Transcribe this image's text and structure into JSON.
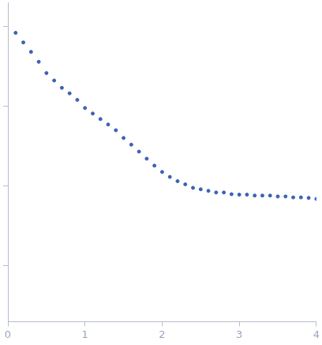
{
  "chart_data": {
    "type": "scatter",
    "x": [
      0.1,
      0.2,
      0.3,
      0.4,
      0.5,
      0.6,
      0.7,
      0.8,
      0.9,
      1.0,
      1.1,
      1.2,
      1.3,
      1.4,
      1.5,
      1.6,
      1.7,
      1.8,
      1.9,
      2.0,
      2.1,
      2.2,
      2.3,
      2.4,
      2.5,
      2.6,
      2.7,
      2.8,
      2.9,
      3.0,
      3.1,
      3.2,
      3.3,
      3.4,
      3.5,
      3.6,
      3.7,
      3.8,
      3.9,
      4.0
    ],
    "values": [
      0.83,
      0.63,
      0.48,
      0.36,
      0.26,
      0.21,
      0.17,
      0.145,
      0.12,
      0.095,
      0.081,
      0.069,
      0.059,
      0.05,
      0.04,
      0.033,
      0.027,
      0.022,
      0.018,
      0.015,
      0.013,
      0.0115,
      0.0105,
      0.0095,
      0.0091,
      0.0087,
      0.0083,
      0.0083,
      0.0079,
      0.0078,
      0.0078,
      0.0076,
      0.0076,
      0.0076,
      0.0074,
      0.0074,
      0.0072,
      0.0072,
      0.0071,
      0.0069
    ],
    "color": "#3a62b5",
    "marker": "circle",
    "log": "y",
    "xlim": [
      0,
      4
    ],
    "xticks": [
      0,
      1,
      2,
      3,
      4
    ],
    "ylim": [
      0.0002,
      2
    ],
    "yticks": [
      0.001,
      0.01,
      0.1,
      1
    ],
    "tick_labels": "x",
    "grid": false
  }
}
